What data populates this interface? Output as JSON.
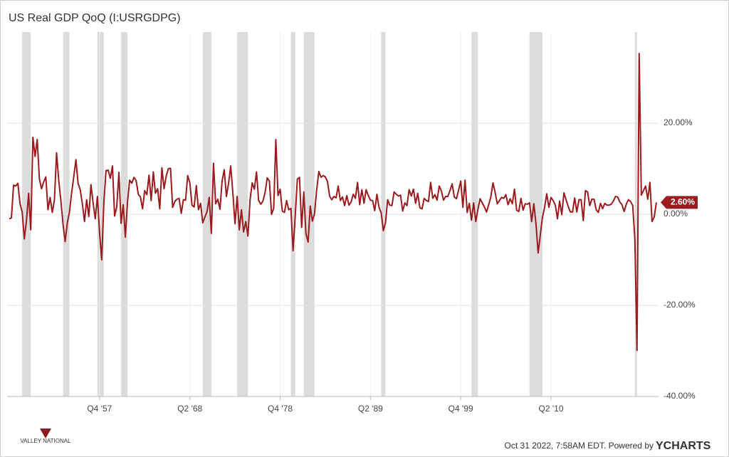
{
  "chart_data": {
    "type": "line",
    "title": "US Real GDP QoQ (I:USRGDPG)",
    "x": [
      1947.25,
      1947.5,
      1947.75,
      1948,
      1948.25,
      1948.5,
      1948.75,
      1949,
      1949.25,
      1949.5,
      1949.75,
      1950,
      1950.25,
      1950.5,
      1950.75,
      1951,
      1951.25,
      1951.5,
      1951.75,
      1952,
      1952.25,
      1952.5,
      1952.75,
      1953,
      1953.25,
      1953.5,
      1953.75,
      1954,
      1954.25,
      1954.5,
      1954.75,
      1955,
      1955.25,
      1955.5,
      1955.75,
      1956,
      1956.25,
      1956.5,
      1956.75,
      1957,
      1957.25,
      1957.5,
      1957.75,
      1958,
      1958.25,
      1958.5,
      1958.75,
      1959,
      1959.25,
      1959.5,
      1959.75,
      1960,
      1960.25,
      1960.5,
      1960.75,
      1961,
      1961.25,
      1961.5,
      1961.75,
      1962,
      1962.25,
      1962.5,
      1962.75,
      1963,
      1963.25,
      1963.5,
      1963.75,
      1964,
      1964.25,
      1964.5,
      1964.75,
      1965,
      1965.25,
      1965.5,
      1965.75,
      1966,
      1966.25,
      1966.5,
      1966.75,
      1967,
      1967.25,
      1967.5,
      1967.75,
      1968,
      1968.25,
      1968.5,
      1968.75,
      1969,
      1969.25,
      1969.5,
      1969.75,
      1970,
      1970.25,
      1970.5,
      1970.75,
      1971,
      1971.25,
      1971.5,
      1971.75,
      1972,
      1972.25,
      1972.5,
      1972.75,
      1973,
      1973.25,
      1973.5,
      1973.75,
      1974,
      1974.25,
      1974.5,
      1974.75,
      1975,
      1975.25,
      1975.5,
      1975.75,
      1976,
      1976.25,
      1976.5,
      1976.75,
      1977,
      1977.25,
      1977.5,
      1977.75,
      1978,
      1978.25,
      1978.5,
      1978.75,
      1979,
      1979.25,
      1979.5,
      1979.75,
      1980,
      1980.25,
      1980.5,
      1980.75,
      1981,
      1981.25,
      1981.5,
      1981.75,
      1982,
      1982.25,
      1982.5,
      1982.75,
      1983,
      1983.25,
      1983.5,
      1983.75,
      1984,
      1984.25,
      1984.5,
      1984.75,
      1985,
      1985.25,
      1985.5,
      1985.75,
      1986,
      1986.25,
      1986.5,
      1986.75,
      1987,
      1987.25,
      1987.5,
      1987.75,
      1988,
      1988.25,
      1988.5,
      1988.75,
      1989,
      1989.25,
      1989.5,
      1989.75,
      1990,
      1990.25,
      1990.5,
      1990.75,
      1991,
      1991.25,
      1991.5,
      1991.75,
      1992,
      1992.25,
      1992.5,
      1992.75,
      1993,
      1993.25,
      1993.5,
      1993.75,
      1994,
      1994.25,
      1994.5,
      1994.75,
      1995,
      1995.25,
      1995.5,
      1995.75,
      1996,
      1996.25,
      1996.5,
      1996.75,
      1997,
      1997.25,
      1997.5,
      1997.75,
      1998,
      1998.25,
      1998.5,
      1998.75,
      1999,
      1999.25,
      1999.5,
      1999.75,
      2000,
      2000.25,
      2000.5,
      2000.75,
      2001,
      2001.25,
      2001.5,
      2001.75,
      2002,
      2002.25,
      2002.5,
      2002.75,
      2003,
      2003.25,
      2003.5,
      2003.75,
      2004,
      2004.25,
      2004.5,
      2004.75,
      2005,
      2005.25,
      2005.5,
      2005.75,
      2006,
      2006.25,
      2006.5,
      2006.75,
      2007,
      2007.25,
      2007.5,
      2007.75,
      2008,
      2008.25,
      2008.5,
      2008.75,
      2009,
      2009.25,
      2009.5,
      2009.75,
      2010,
      2010.25,
      2010.5,
      2010.75,
      2011,
      2011.25,
      2011.5,
      2011.75,
      2012,
      2012.25,
      2012.5,
      2012.75,
      2013,
      2013.25,
      2013.5,
      2013.75,
      2014,
      2014.25,
      2014.5,
      2014.75,
      2015,
      2015.25,
      2015.5,
      2015.75,
      2016,
      2016.25,
      2016.5,
      2016.75,
      2017,
      2017.25,
      2017.5,
      2017.75,
      2018,
      2018.25,
      2018.5,
      2018.75,
      2019,
      2019.25,
      2019.5,
      2019.75,
      2020,
      2020.25,
      2020.5,
      2020.75,
      2021,
      2021.25,
      2021.5,
      2021.75,
      2022,
      2022.25,
      2022.5
    ],
    "series": [
      {
        "color": "#9b1b1e",
        "values": [
          -1.0,
          -0.8,
          6.4,
          6.2,
          6.8,
          2.3,
          0.5,
          -5.4,
          -1.4,
          4.6,
          -3.4,
          16.9,
          12.7,
          16.4,
          7.8,
          5.6,
          7.1,
          8.2,
          1.0,
          3.7,
          0.4,
          3.1,
          13.5,
          7.5,
          3.0,
          -2.2,
          -6.0,
          -1.9,
          0.5,
          4.7,
          8.2,
          12.0,
          6.8,
          5.4,
          2.3,
          -1.6,
          3.2,
          -0.5,
          6.5,
          2.5,
          -1.0,
          3.9,
          -4.1,
          -10.0,
          2.6,
          9.6,
          9.7,
          7.9,
          10.6,
          -0.4,
          1.7,
          9.2,
          -2.0,
          2.1,
          -5.0,
          2.7,
          7.5,
          6.8,
          8.1,
          7.4,
          4.4,
          3.8,
          1.2,
          5.2,
          4.3,
          8.6,
          3.0,
          9.3,
          4.6,
          5.6,
          1.2,
          10.2,
          5.6,
          8.4,
          10.0,
          10.1,
          1.5,
          2.8,
          3.3,
          3.5,
          0.2,
          3.2,
          3.1,
          8.5,
          6.9,
          2.0,
          1.6,
          6.3,
          1.0,
          2.4,
          -1.9,
          -0.6,
          0.6,
          3.7,
          -4.2,
          11.2,
          2.3,
          3.3,
          1.1,
          7.3,
          9.8,
          3.9,
          6.8,
          10.6,
          4.7,
          -2.1,
          3.9,
          -3.4,
          1.0,
          -3.9,
          -1.6,
          -4.8,
          3.1,
          6.9,
          5.5,
          9.3,
          3.0,
          2.2,
          2.9,
          4.8,
          8.0,
          7.3,
          0.0,
          1.3,
          16.4,
          4.1,
          5.5,
          0.7,
          0.4,
          3.0,
          1.0,
          1.3,
          -8.0,
          -0.5,
          7.7,
          8.1,
          -2.9,
          4.9,
          -4.3,
          -6.1,
          1.8,
          -1.5,
          0.2,
          5.4,
          9.4,
          8.1,
          8.5,
          8.2,
          7.2,
          4.0,
          3.2,
          3.9,
          3.6,
          6.2,
          3.0,
          3.8,
          1.9,
          4.1,
          2.0,
          2.7,
          4.4,
          3.5,
          7.0,
          2.1,
          5.4,
          2.4,
          5.4,
          4.1,
          3.1,
          3.0,
          0.8,
          4.4,
          1.5,
          0.3,
          -3.6,
          -1.9,
          3.2,
          2.0,
          1.9,
          4.9,
          4.4,
          4.0,
          4.2,
          0.7,
          2.5,
          1.9,
          5.4,
          4.0,
          5.5,
          2.4,
          4.6,
          1.4,
          1.2,
          3.5,
          3.0,
          2.8,
          7.0,
          3.5,
          4.3,
          3.1,
          6.2,
          5.1,
          3.1,
          3.9,
          3.9,
          5.2,
          6.7,
          3.8,
          3.4,
          5.3,
          7.3,
          1.5,
          7.5,
          0.4,
          2.4,
          -1.3,
          2.5,
          -1.6,
          1.1,
          3.4,
          2.5,
          1.6,
          0.5,
          2.1,
          3.8,
          6.9,
          4.8,
          2.3,
          3.0,
          3.7,
          3.5,
          4.3,
          2.1,
          3.4,
          2.3,
          5.5,
          0.9,
          0.6,
          3.5,
          0.9,
          2.3,
          2.2,
          2.5,
          -1.6,
          2.3,
          -2.1,
          -8.5,
          -4.6,
          -0.7,
          1.5,
          4.5,
          1.5,
          3.7,
          3.0,
          2.0,
          -1.0,
          2.9,
          -0.1,
          4.7,
          3.2,
          1.7,
          0.5,
          0.5,
          3.6,
          0.5,
          3.2,
          3.2,
          -1.4,
          5.2,
          4.9,
          1.9,
          3.3,
          3.3,
          1.0,
          0.4,
          2.4,
          1.2,
          2.4,
          2.0,
          2.0,
          2.2,
          2.9,
          3.9,
          3.8,
          2.7,
          2.1,
          0.6,
          2.2,
          3.2,
          2.8,
          1.9,
          -5.5,
          -29.9,
          35.3,
          4.2,
          5.2,
          6.2,
          3.3,
          7.0,
          -1.6,
          -0.6,
          2.6
        ]
      }
    ],
    "last_value_label": "2.60%",
    "xlim": [
      1947,
      2022.75
    ],
    "xticks": [
      {
        "value": 1957.75,
        "label": "Q4 '57"
      },
      {
        "value": 1968.25,
        "label": "Q2 '68"
      },
      {
        "value": 1978.75,
        "label": "Q4 '78"
      },
      {
        "value": 1989.25,
        "label": "Q2 '89"
      },
      {
        "value": 1999.75,
        "label": "Q4 '99"
      },
      {
        "value": 2010.25,
        "label": "Q2 '10"
      }
    ],
    "ylim": [
      -40,
      40
    ],
    "yticks": [
      {
        "value": -40,
        "label": "-40.00%"
      },
      {
        "value": -20,
        "label": "-20.00%"
      },
      {
        "value": 0,
        "label": "0.00%"
      },
      {
        "value": 20,
        "label": "20.00%"
      }
    ],
    "grid": true,
    "recession_color": "#dcdcdc",
    "recessions": [
      [
        1948.75,
        1949.75
      ],
      [
        1953.5,
        1954.25
      ],
      [
        1957.5,
        1958.25
      ],
      [
        1960.25,
        1961
      ],
      [
        1969.75,
        1970.75
      ],
      [
        1973.75,
        1975
      ],
      [
        1980,
        1980.5
      ],
      [
        1981.5,
        1982.75
      ],
      [
        1990.5,
        1991
      ],
      [
        2001,
        2001.75
      ],
      [
        2007.75,
        2009.25
      ],
      [
        2020,
        2020.25
      ]
    ]
  },
  "footer": {
    "timestamp": "Oct 31 2022, 7:58AM EDT. Powered by",
    "brand": "YCHARTS",
    "logo": "VALLEY NATIONAL"
  }
}
